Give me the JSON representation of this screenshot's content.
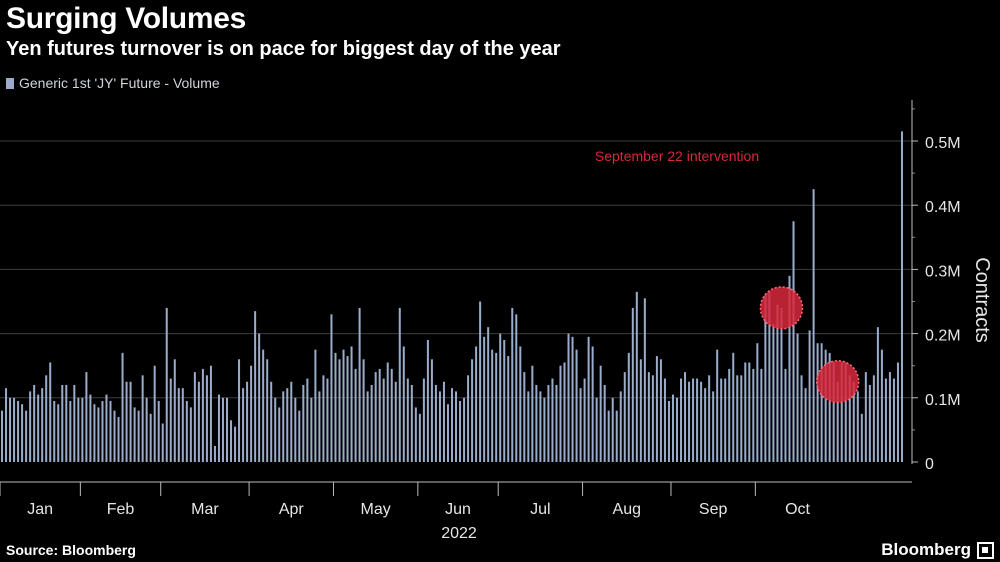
{
  "title": "Surging Volumes",
  "subtitle": "Yen futures turnover is on pace for biggest day of the year",
  "legend_label": "Generic 1st 'JY' Future - Volume",
  "source": "Source: Bloomberg",
  "brand": "Bloomberg",
  "colors": {
    "bar": "#9aaccb",
    "annotation": "#d8283c",
    "grid": "#3d3d3d",
    "background": "#000000"
  },
  "chart_data": {
    "type": "bar",
    "series": [
      {
        "name": "Generic 1st 'JY' Future - Volume",
        "values": [
          80000,
          115000,
          100000,
          100000,
          95000,
          90000,
          80000,
          110000,
          120000,
          105000,
          115000,
          135000,
          155000,
          95000,
          90000,
          120000,
          120000,
          95000,
          120000,
          100000,
          100000,
          140000,
          105000,
          90000,
          85000,
          95000,
          105000,
          95000,
          80000,
          70000,
          170000,
          125000,
          125000,
          85000,
          80000,
          135000,
          100000,
          75000,
          150000,
          95000,
          60000,
          240000,
          130000,
          160000,
          115000,
          115000,
          95000,
          85000,
          140000,
          125000,
          145000,
          135000,
          150000,
          25000,
          105000,
          100000,
          100000,
          65000,
          55000,
          160000,
          115000,
          125000,
          150000,
          235000,
          200000,
          175000,
          160000,
          125000,
          100000,
          85000,
          110000,
          115000,
          125000,
          100000,
          80000,
          120000,
          130000,
          100000,
          175000,
          110000,
          135000,
          130000,
          230000,
          170000,
          160000,
          175000,
          165000,
          180000,
          145000,
          240000,
          160000,
          110000,
          120000,
          140000,
          145000,
          130000,
          155000,
          145000,
          125000,
          240000,
          180000,
          130000,
          120000,
          85000,
          75000,
          130000,
          190000,
          160000,
          120000,
          110000,
          125000,
          90000,
          115000,
          110000,
          95000,
          100000,
          135000,
          160000,
          180000,
          250000,
          195000,
          210000,
          175000,
          170000,
          200000,
          190000,
          165000,
          240000,
          230000,
          180000,
          140000,
          110000,
          150000,
          120000,
          110000,
          100000,
          120000,
          130000,
          120000,
          150000,
          155000,
          200000,
          195000,
          175000,
          115000,
          130000,
          195000,
          180000,
          100000,
          150000,
          120000,
          80000,
          100000,
          80000,
          110000,
          140000,
          170000,
          240000,
          265000,
          160000,
          255000,
          140000,
          135000,
          165000,
          160000,
          130000,
          95000,
          105000,
          100000,
          130000,
          140000,
          125000,
          130000,
          130000,
          125000,
          115000,
          135000,
          110000,
          175000,
          130000,
          130000,
          145000,
          170000,
          135000,
          135000,
          155000,
          155000,
          145000,
          185000,
          145000,
          260000,
          265000,
          215000,
          245000,
          240000,
          145000,
          290000,
          375000,
          200000,
          135000,
          115000,
          205000,
          425000,
          185000,
          185000,
          175000,
          170000,
          155000,
          125000,
          155000,
          155000,
          135000,
          125000,
          110000,
          75000,
          140000,
          120000,
          135000,
          210000,
          175000,
          130000,
          140000,
          130000,
          155000,
          515000
        ]
      }
    ],
    "x_tick_labels": [
      "Jan",
      "Feb",
      "Mar",
      "Apr",
      "May",
      "Jun",
      "Jul",
      "Aug",
      "Sep",
      "Oct"
    ],
    "x_axis_year": "2022",
    "y_tick_labels": [
      "0",
      "0.1M",
      "0.2M",
      "0.3M",
      "0.4M",
      "0.5M"
    ],
    "y_ticks": [
      0,
      100000,
      200000,
      300000,
      400000,
      500000
    ],
    "ylim": [
      0,
      560000
    ],
    "ylabel": "Contracts",
    "grid": true,
    "legend_position": "top-left",
    "annotation": {
      "text": "September 22 intervention"
    },
    "highlighted_bars": [
      194,
      208
    ]
  }
}
